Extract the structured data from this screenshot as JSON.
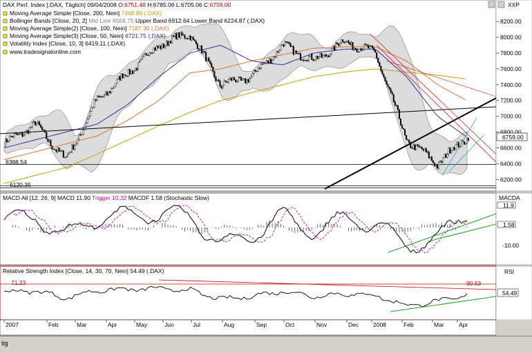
{
  "main_panel": {
    "title_series": "DAX Perf. Index [.DAX, Täglich]",
    "date": "09/04/2008",
    "ohlc": {
      "O": "6751.48",
      "H": "6785.06",
      "L": "6705.06",
      "C": "6759.00"
    },
    "legend": [
      {
        "label": "Moving Average Simple [Close, 200, Nein]",
        "value": "7468.89 (.DAX)",
        "color": "#c8a000"
      },
      {
        "label": "Bollinger Bands [Close, 20, 2]",
        "mid": "Mid Line 6568.75",
        "upper": "Upper Band 6912.64",
        "lower": "Lower Band 6224.87 (.DAX)",
        "color": "#808080"
      },
      {
        "label": "Moving Average Simple(2) [Close, 100, Nein]",
        "value": "7187.30 (.DAX)",
        "color": "#e07030"
      },
      {
        "label": "Moving Average Simple(3) [Close, 50, Nein]",
        "value": "6721.75 (.DAX)",
        "color": "#3030a0"
      },
      {
        "label": "Volatility Index [Close, 10, 3]",
        "value": "6419.11 (.DAX)",
        "color": "#000000"
      }
    ],
    "website": "www.tradesignalonline.com",
    "label_xxp": "XXP",
    "last_price": "6759.00",
    "hline_1": "6388.54",
    "hline_2": "6120.35"
  },
  "macd_panel": {
    "label": "MACD All [12, 26, 9]",
    "macd": "MACD 11.90",
    "trigger": "Trigger 10.32",
    "macdf": "MACDF 1.58",
    "extra": "(Stochastic Slow)",
    "right_title": "MACDA",
    "right_values": [
      "11.9",
      "1.58"
    ],
    "tick_labels": [
      "-10.00"
    ]
  },
  "rsi_panel": {
    "label": "Relative Strength Index [Close, 14, 30, 70, Nein]",
    "value": "54.49 (.DAX)",
    "right_title": "RSI",
    "right_value": "54.49",
    "level_left": "71.23",
    "level_right": "90.53"
  },
  "status_bar": {
    "text": "tig"
  },
  "chart_data": [
    {
      "type": "line",
      "title": "DAX Perf. Index [.DAX, Täglich]",
      "x": [
        "2007",
        "Feb",
        "Mar",
        "Apr",
        "May",
        "Jun",
        "Jul",
        "Aug",
        "Sep",
        "Oct",
        "Nov",
        "Dec",
        "2008",
        "Feb",
        "Mar",
        "Apr"
      ],
      "y_ticks": [
        6200,
        6400,
        6600,
        6800,
        7000,
        7200,
        7400,
        7600,
        7800,
        8000,
        8200
      ],
      "ylim": [
        6080,
        8350
      ],
      "series": [
        {
          "name": "DAX Perf. Index",
          "values": [
            6650,
            6900,
            6450,
            7200,
            7550,
            7900,
            8050,
            7400,
            7500,
            7900,
            7700,
            7950,
            7800,
            6700,
            6400,
            6759
          ]
        },
        {
          "name": "Moving Average Simple [Close, 200, Nein]",
          "values": [
            6150,
            6250,
            6350,
            6520,
            6700,
            6880,
            7050,
            7200,
            7300,
            7400,
            7500,
            7560,
            7600,
            7560,
            7520,
            7469
          ]
        },
        {
          "name": "Moving Average Simple(2) [Close, 100, Nein]",
          "values": [
            6450,
            6550,
            6650,
            6750,
            6950,
            7200,
            7550,
            7600,
            7700,
            7780,
            7860,
            7880,
            7880,
            7700,
            7400,
            7187
          ]
        },
        {
          "name": "Moving Average Simple(3) [Close, 50, Nein]",
          "values": [
            6600,
            6700,
            6800,
            6900,
            7150,
            7500,
            7800,
            7900,
            7700,
            7650,
            7800,
            7850,
            7850,
            7500,
            7000,
            6722
          ]
        }
      ]
    },
    {
      "type": "bar",
      "title": "MACD All [12, 26, 9]",
      "x": [
        "2007",
        "Feb",
        "Mar",
        "Apr",
        "May",
        "Jun",
        "Jul",
        "Aug",
        "Sep",
        "Oct",
        "Nov",
        "Dec",
        "2008",
        "Feb",
        "Mar",
        "Apr"
      ],
      "series": [
        {
          "name": "MACD",
          "values": [
            5,
            8,
            -6,
            7,
            9,
            10,
            8,
            -12,
            -6,
            9,
            -4,
            7,
            2,
            -13,
            -8,
            11.9
          ]
        }
      ]
    },
    {
      "type": "line",
      "title": "Relative Strength Index [Close, 14, 30, 70, Nein]",
      "x": [
        "2007",
        "Feb",
        "Mar",
        "Apr",
        "May",
        "Jun",
        "Jul",
        "Aug",
        "Sep",
        "Oct",
        "Nov",
        "Dec",
        "2008",
        "Feb",
        "Mar",
        "Apr"
      ],
      "ylim": [
        0,
        100
      ],
      "series": [
        {
          "name": "RSI",
          "values": [
            62,
            65,
            48,
            66,
            68,
            70,
            66,
            45,
            52,
            64,
            52,
            58,
            54,
            30,
            40,
            54.49
          ]
        }
      ]
    }
  ]
}
